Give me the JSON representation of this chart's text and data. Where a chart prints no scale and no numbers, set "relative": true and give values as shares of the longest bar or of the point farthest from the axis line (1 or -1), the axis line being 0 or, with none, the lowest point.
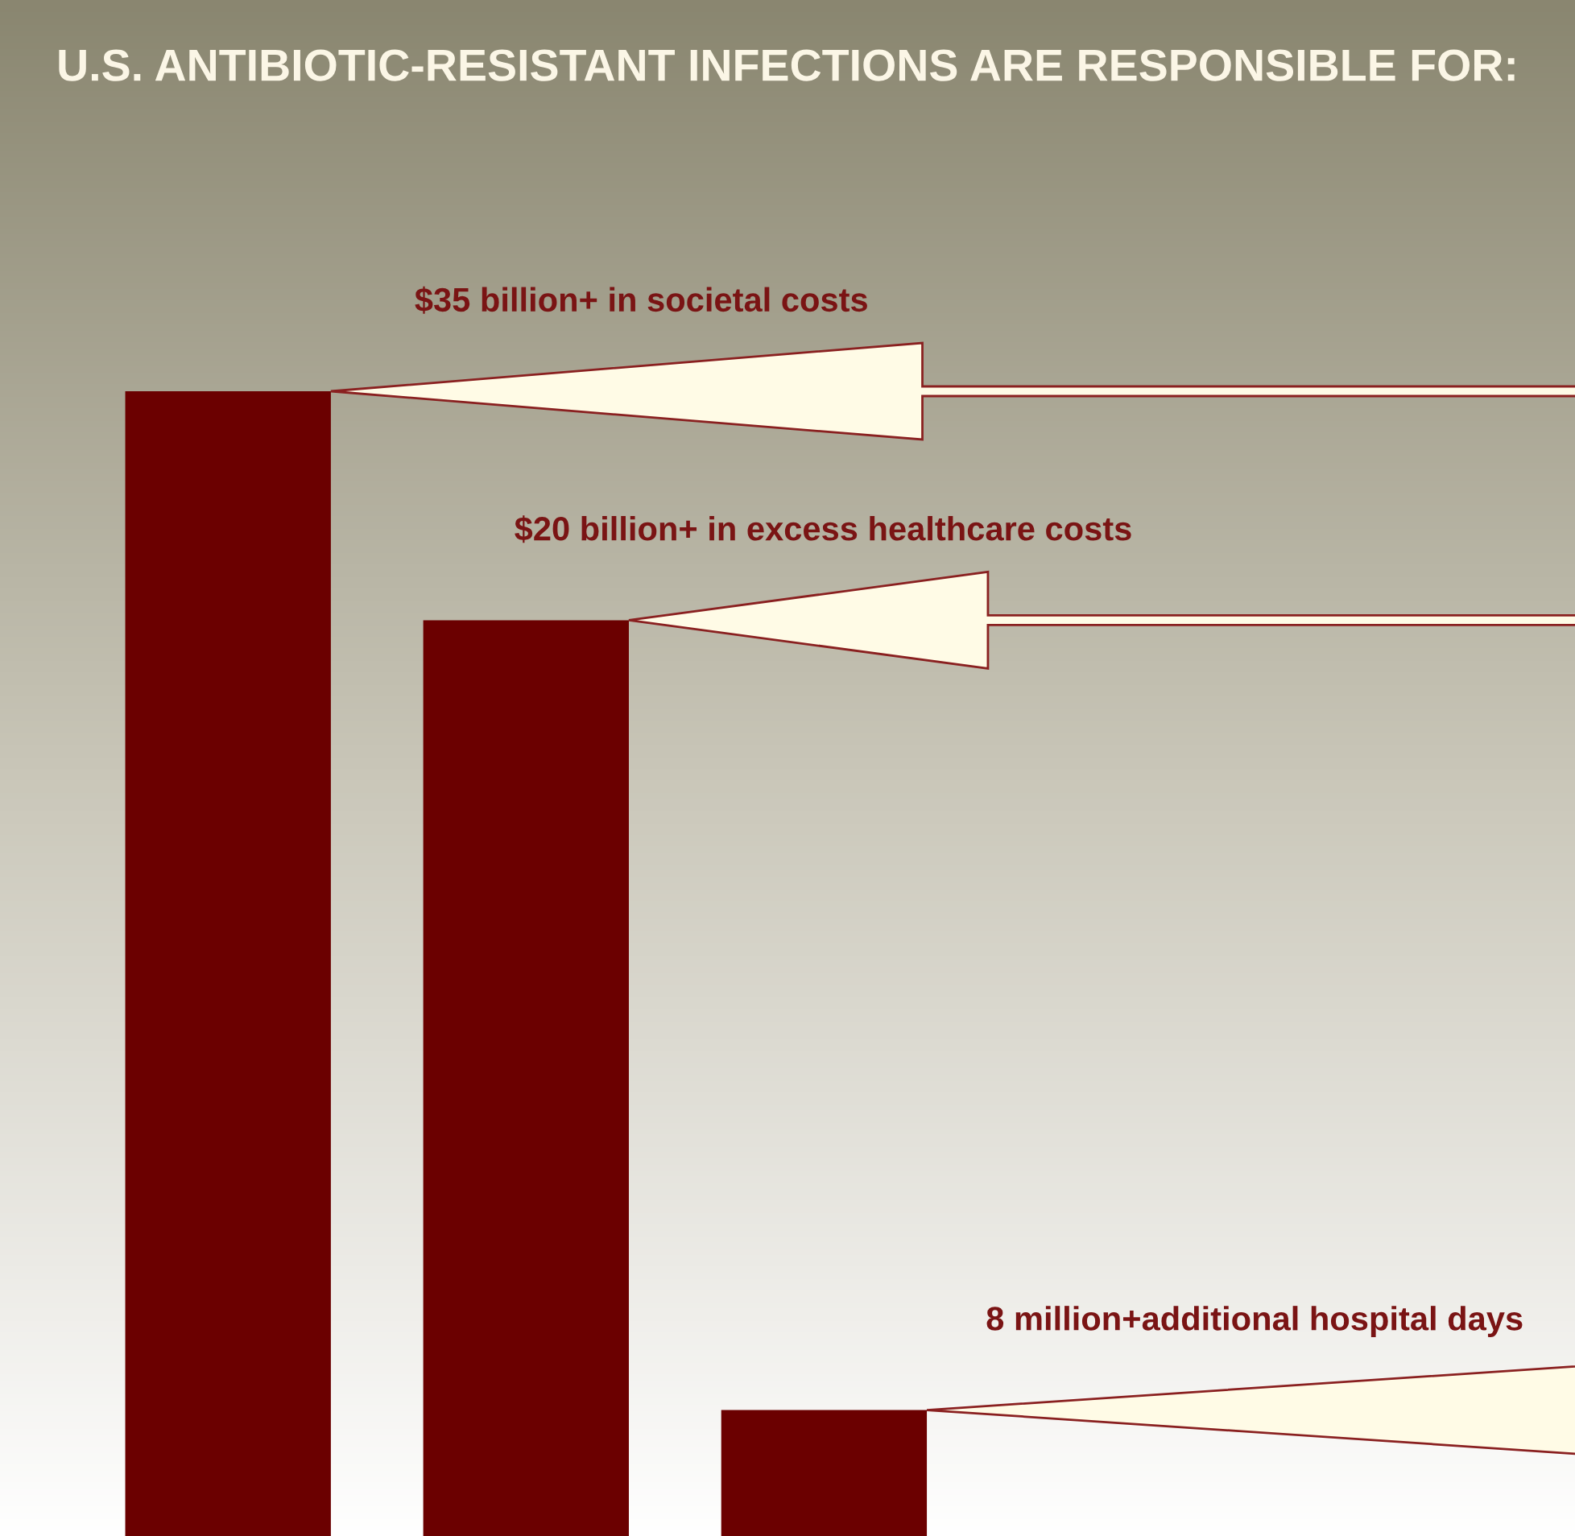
{
  "chart_data": {
    "type": "bar",
    "title": "U.S. ANTIBIOTIC-RESISTANT INFECTIONS ARE RESPONSIBLE FOR:",
    "categories": [
      null,
      null,
      null
    ],
    "values": [
      1,
      0.8,
      0.11
    ],
    "relative": true,
    "color": "#6b0000",
    "annotations": [
      "$35 billion+ in societal costs",
      "$20 billion+ in excess healthcare costs",
      "8 million+additional hospital days"
    ]
  }
}
